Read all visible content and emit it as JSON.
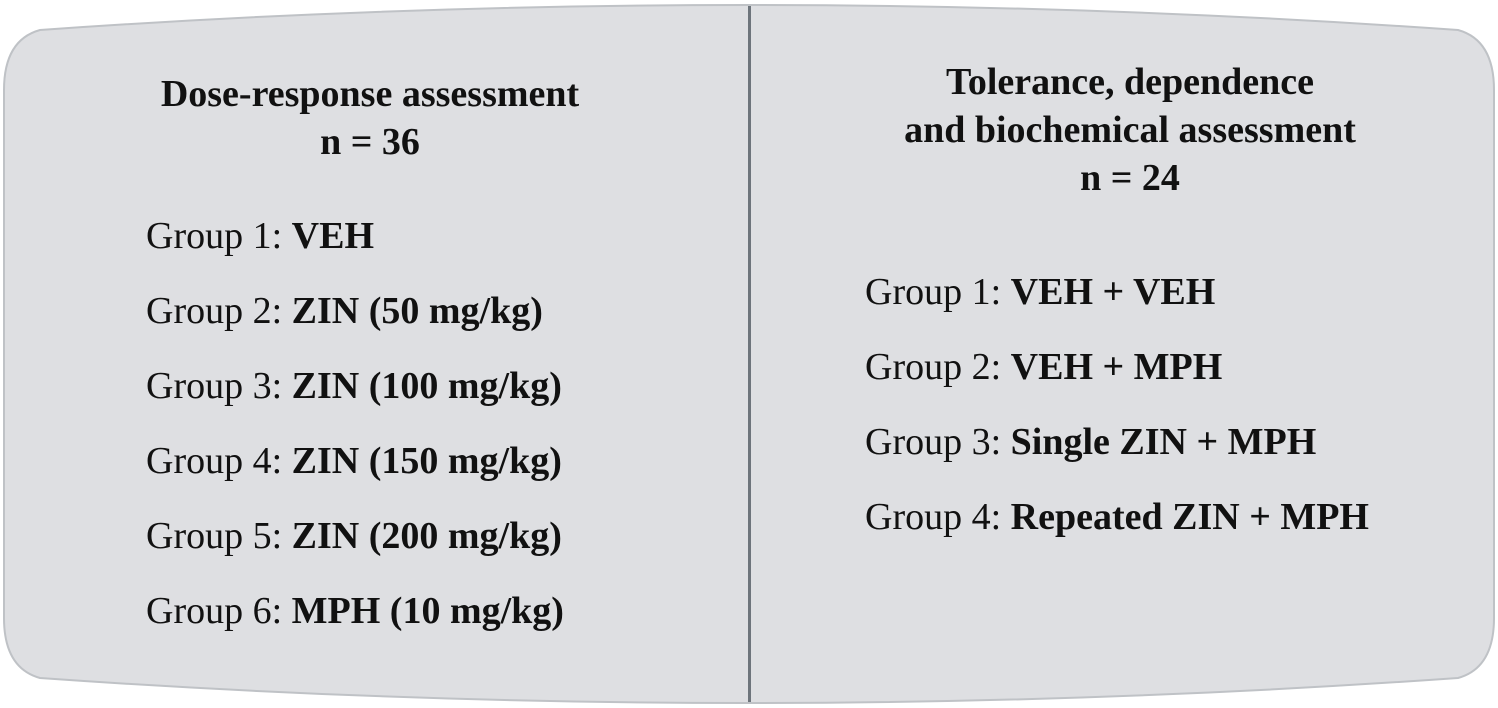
{
  "colors": {
    "panel_fill": "#dedfe2",
    "panel_stroke": "#bfc2c6",
    "divider": "#6d747b",
    "text": "#111111"
  },
  "left_column": {
    "title": "Dose-response assessment",
    "n_label": "n = 36",
    "groups": [
      {
        "label": "Group 1:",
        "value": "VEH"
      },
      {
        "label": "Group 2:",
        "value": "ZIN (50 mg/kg)"
      },
      {
        "label": "Group 3:",
        "value": "ZIN (100 mg/kg)"
      },
      {
        "label": "Group 4:",
        "value": "ZIN (150 mg/kg)"
      },
      {
        "label": "Group 5:",
        "value": "ZIN (200 mg/kg)"
      },
      {
        "label": "Group 6:",
        "value": "MPH (10 mg/kg)"
      }
    ]
  },
  "right_column": {
    "title_line1": "Tolerance, dependence",
    "title_line2": "and biochemical assessment",
    "n_label": "n = 24",
    "groups": [
      {
        "label": "Group 1:",
        "value": "VEH + VEH"
      },
      {
        "label": "Group 2:",
        "value": "VEH + MPH"
      },
      {
        "label": "Group 3:",
        "value": "Single ZIN + MPH"
      },
      {
        "label": "Group 4:",
        "value": "Repeated ZIN + MPH"
      }
    ]
  }
}
